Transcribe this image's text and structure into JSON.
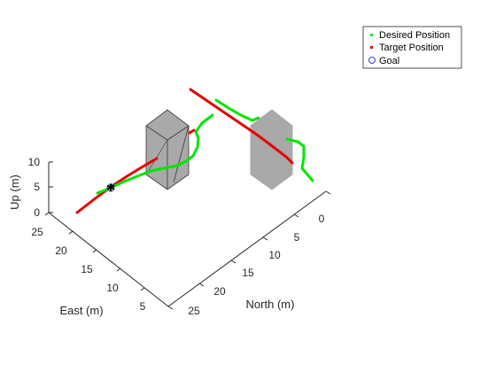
{
  "chart_data": {
    "type": "scatter",
    "dimensions": 3,
    "axes": {
      "x": {
        "label": "North (m)",
        "ticks": [
          "0",
          "5",
          "10",
          "15",
          "20",
          "25"
        ]
      },
      "y": {
        "label": "East (m)",
        "ticks": [
          "5",
          "10",
          "15",
          "20",
          "25"
        ]
      },
      "z": {
        "label": "Up (m)",
        "ticks": [
          "0",
          "5",
          "10"
        ]
      }
    },
    "legend": {
      "placement": "top-right",
      "entries": [
        "Desired Position",
        "Target Position",
        "Goal"
      ]
    },
    "series": [
      {
        "name": "Desired Position",
        "color": "#00e600",
        "marker": "point"
      },
      {
        "name": "Target Position",
        "color": "#e60000",
        "marker": "point"
      },
      {
        "name": "Goal",
        "color": "#3a3ad0",
        "marker": "circle"
      }
    ],
    "obstacles": [
      {
        "shape": "hexagonal prism",
        "style": "wireframe",
        "color": "#a9a9a9"
      },
      {
        "shape": "hexagonal prism",
        "style": "solid",
        "color": "#a9a9a9"
      }
    ]
  }
}
